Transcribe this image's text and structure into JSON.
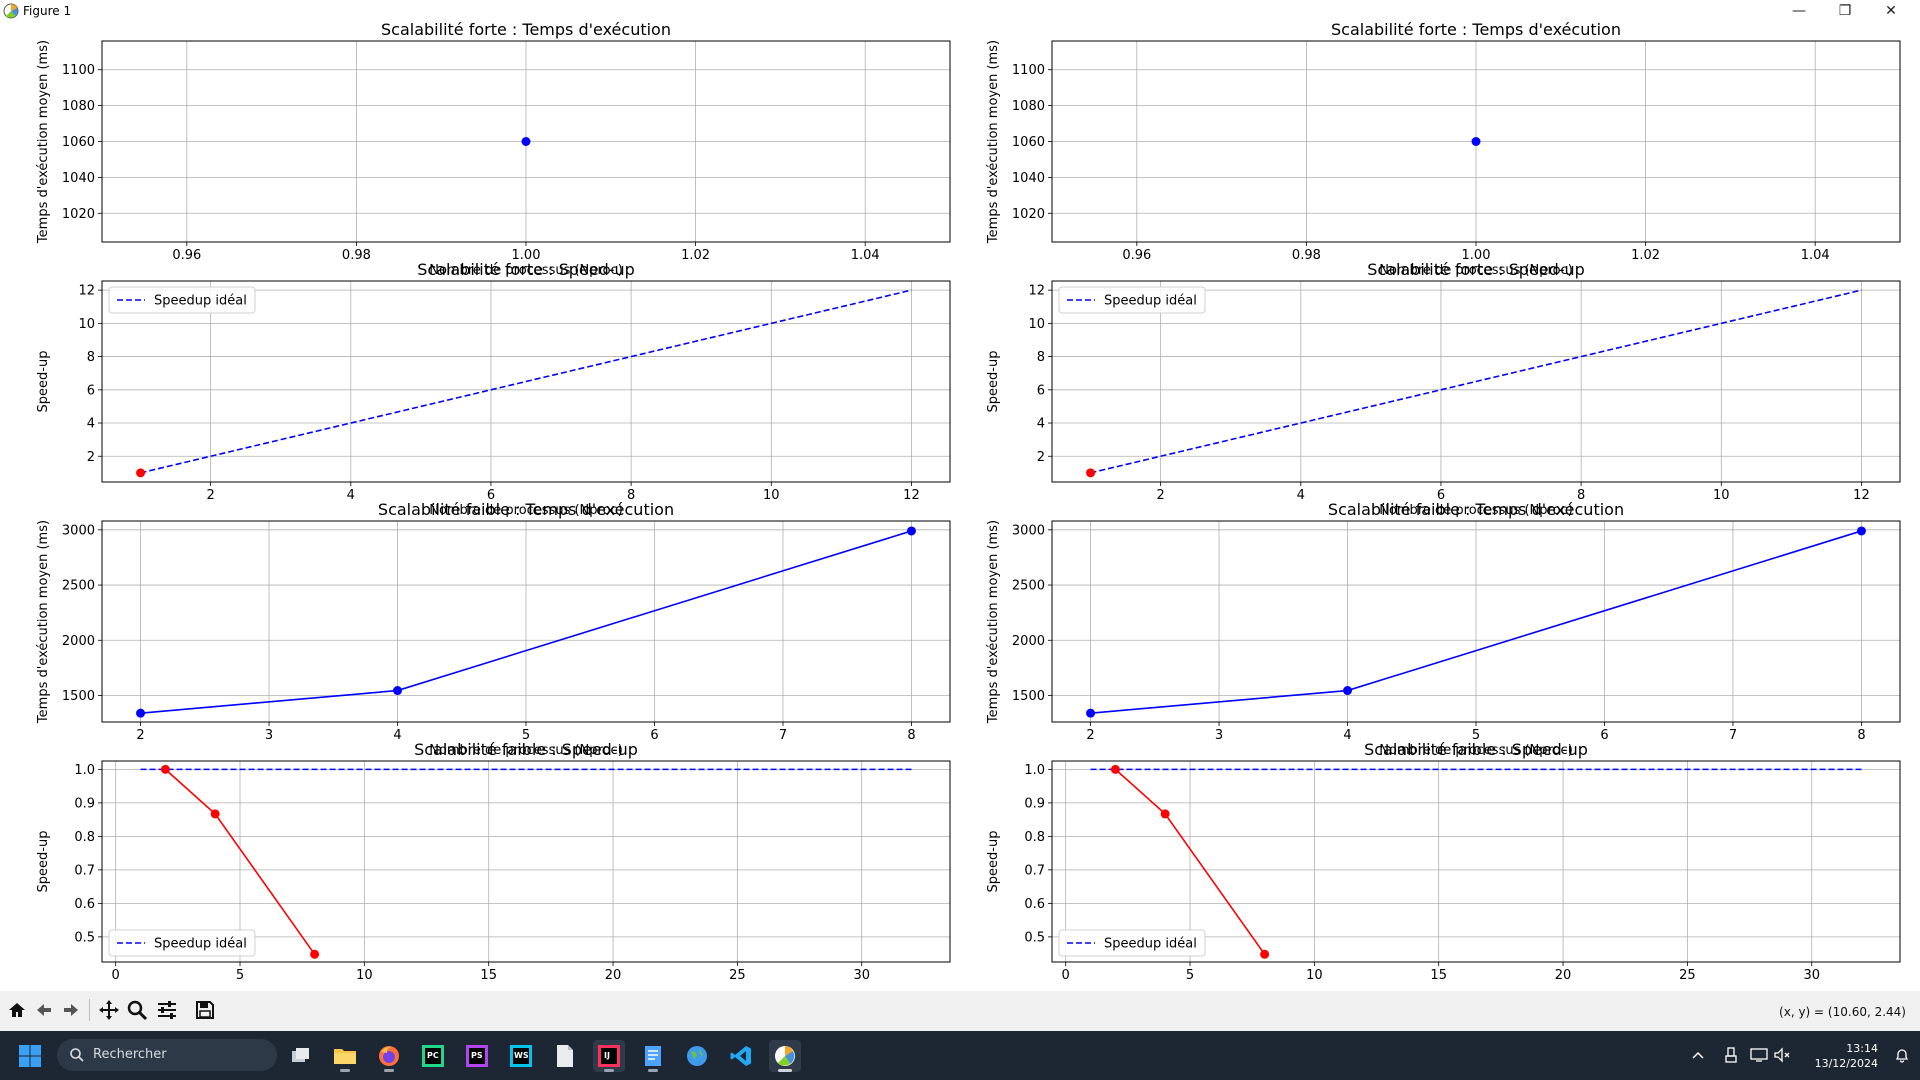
{
  "window": {
    "title": "Figure 1",
    "controls": {
      "minimize": "—",
      "maximize": "❐",
      "close": "✕"
    }
  },
  "toolbar": {
    "buttons": [
      "home-icon",
      "back-icon",
      "forward-icon",
      "pan-icon",
      "zoom-icon",
      "configure-subplots-icon",
      "save-icon"
    ],
    "coords": "(x, y) = (10.60, 2.44)"
  },
  "taskbar": {
    "search_placeholder": "Rechercher",
    "apps": [
      "task-view",
      "file-explorer",
      "firefox",
      "pycharm",
      "phpstorm",
      "webstorm",
      "notepad",
      "intellij",
      "notes",
      "globe",
      "vscode",
      "matplotlib"
    ],
    "time": "13:14",
    "date": "13/12/2024"
  },
  "chart_data": [
    {
      "type": "scatter",
      "title": "Scalabilité forte : Temps d'exécution",
      "xlabel": "Nombre de processus (Nproc)",
      "ylabel": "Temps d'exécution moyen (ms)",
      "xlim": [
        0.95,
        1.05
      ],
      "ylim": [
        1004,
        1116
      ],
      "xticks": [
        0.96,
        0.98,
        1.0,
        1.02,
        1.04
      ],
      "xticklabels": [
        "0.96",
        "0.98",
        "1.00",
        "1.02",
        "1.04"
      ],
      "yticks": [
        1020,
        1040,
        1060,
        1080,
        1100
      ],
      "yticklabels": [
        "1020",
        "1040",
        "1060",
        "1080",
        "1100"
      ],
      "grid": true,
      "legend": null,
      "series": [
        {
          "name": "",
          "style": "marker",
          "color": "#0000ff",
          "x": [
            1.0
          ],
          "y": [
            1060
          ]
        }
      ]
    },
    {
      "type": "line",
      "title": "Scalabilité forte : Speed-up",
      "xlabel": "Nombre de processus (Nproc)",
      "ylabel": "Speed-up",
      "xlim": [
        0.45,
        12.55
      ],
      "ylim": [
        0.45,
        12.55
      ],
      "xticks": [
        2,
        4,
        6,
        8,
        10,
        12
      ],
      "xticklabels": [
        "2",
        "4",
        "6",
        "8",
        "10",
        "12"
      ],
      "yticks": [
        2,
        4,
        6,
        8,
        10,
        12
      ],
      "yticklabels": [
        "2",
        "4",
        "6",
        "8",
        "10",
        "12"
      ],
      "grid": true,
      "legend": "upper left",
      "series": [
        {
          "name": "Speedup idéal",
          "style": "dashed",
          "color": "#0000ff",
          "x": [
            1,
            12
          ],
          "y": [
            1,
            12
          ]
        },
        {
          "name": "",
          "style": "marker",
          "color": "#ff0000",
          "x": [
            1
          ],
          "y": [
            1
          ]
        }
      ]
    },
    {
      "type": "line",
      "title": "Scalabilité faible : Temps d'exécution",
      "xlabel": "Nombre de processus (Nproc)",
      "ylabel": "Temps d'exécution moyen (ms)",
      "xlim": [
        1.7,
        8.3
      ],
      "ylim": [
        1260,
        3080
      ],
      "xticks": [
        2,
        3,
        4,
        5,
        6,
        7,
        8
      ],
      "xticklabels": [
        "2",
        "3",
        "4",
        "5",
        "6",
        "7",
        "8"
      ],
      "yticks": [
        1500,
        2000,
        2500,
        3000
      ],
      "yticklabels": [
        "1500",
        "2000",
        "2500",
        "3000"
      ],
      "grid": true,
      "legend": null,
      "series": [
        {
          "name": "",
          "style": "line-marker",
          "color": "#0000ff",
          "x": [
            2,
            4,
            8
          ],
          "y": [
            1340,
            1545,
            2990
          ]
        }
      ]
    },
    {
      "type": "line",
      "title": "Scalabilité faible : Speed-up",
      "xlabel": "",
      "ylabel": "Speed-up",
      "xlim": [
        -0.55,
        33.55
      ],
      "ylim": [
        0.425,
        1.025
      ],
      "xticks": [
        0,
        5,
        10,
        15,
        20,
        25,
        30
      ],
      "xticklabels": [
        "0",
        "5",
        "10",
        "15",
        "20",
        "25",
        "30"
      ],
      "yticks": [
        0.5,
        0.6,
        0.7,
        0.8,
        0.9,
        1.0
      ],
      "yticklabels": [
        "0.5",
        "0.6",
        "0.7",
        "0.8",
        "0.9",
        "1.0"
      ],
      "grid": true,
      "legend": "lower left",
      "series": [
        {
          "name": "Speedup idéal",
          "style": "dashed",
          "color": "#0000ff",
          "x": [
            1,
            32
          ],
          "y": [
            1.0,
            1.0
          ]
        },
        {
          "name": "",
          "style": "line-marker",
          "color": "#ff0000",
          "x": [
            2,
            4,
            8
          ],
          "y": [
            1.0,
            0.867,
            0.448
          ]
        }
      ]
    },
    {
      "type": "scatter",
      "title": "Scalabilité forte : Temps d'exécution",
      "xlabel": "Nombre de processus (Nproc)",
      "ylabel": "Temps d'exécution moyen (ms)",
      "xlim": [
        0.95,
        1.05
      ],
      "ylim": [
        1004,
        1116
      ],
      "xticks": [
        0.96,
        0.98,
        1.0,
        1.02,
        1.04
      ],
      "xticklabels": [
        "0.96",
        "0.98",
        "1.00",
        "1.02",
        "1.04"
      ],
      "yticks": [
        1020,
        1040,
        1060,
        1080,
        1100
      ],
      "yticklabels": [
        "1020",
        "1040",
        "1060",
        "1080",
        "1100"
      ],
      "grid": true,
      "legend": null,
      "series": [
        {
          "name": "",
          "style": "marker",
          "color": "#0000ff",
          "x": [
            1.0
          ],
          "y": [
            1060
          ]
        }
      ]
    },
    {
      "type": "line",
      "title": "Scalabilité forte : Speed-up",
      "xlabel": "Nombre de processus (Nproc)",
      "ylabel": "Speed-up",
      "xlim": [
        0.45,
        12.55
      ],
      "ylim": [
        0.45,
        12.55
      ],
      "xticks": [
        2,
        4,
        6,
        8,
        10,
        12
      ],
      "xticklabels": [
        "2",
        "4",
        "6",
        "8",
        "10",
        "12"
      ],
      "yticks": [
        2,
        4,
        6,
        8,
        10,
        12
      ],
      "yticklabels": [
        "2",
        "4",
        "6",
        "8",
        "10",
        "12"
      ],
      "grid": true,
      "legend": "upper left",
      "series": [
        {
          "name": "Speedup idéal",
          "style": "dashed",
          "color": "#0000ff",
          "x": [
            1,
            12
          ],
          "y": [
            1,
            12
          ]
        },
        {
          "name": "",
          "style": "marker",
          "color": "#ff0000",
          "x": [
            1
          ],
          "y": [
            1
          ]
        }
      ]
    },
    {
      "type": "line",
      "title": "Scalabilité faible : Temps d'exécution",
      "xlabel": "Nombre de processus (Nproc)",
      "ylabel": "Temps d'exécution moyen (ms)",
      "xlim": [
        1.7,
        8.3
      ],
      "ylim": [
        1260,
        3080
      ],
      "xticks": [
        2,
        3,
        4,
        5,
        6,
        7,
        8
      ],
      "xticklabels": [
        "2",
        "3",
        "4",
        "5",
        "6",
        "7",
        "8"
      ],
      "yticks": [
        1500,
        2000,
        2500,
        3000
      ],
      "yticklabels": [
        "1500",
        "2000",
        "2500",
        "3000"
      ],
      "grid": true,
      "legend": null,
      "series": [
        {
          "name": "",
          "style": "line-marker",
          "color": "#0000ff",
          "x": [
            2,
            4,
            8
          ],
          "y": [
            1340,
            1545,
            2990
          ]
        }
      ]
    },
    {
      "type": "line",
      "title": "Scalabilité faible : Speed-up",
      "xlabel": "",
      "ylabel": "Speed-up",
      "xlim": [
        -0.55,
        33.55
      ],
      "ylim": [
        0.425,
        1.025
      ],
      "xticks": [
        0,
        5,
        10,
        15,
        20,
        25,
        30
      ],
      "xticklabels": [
        "0",
        "5",
        "10",
        "15",
        "20",
        "25",
        "30"
      ],
      "yticks": [
        0.5,
        0.6,
        0.7,
        0.8,
        0.9,
        1.0
      ],
      "yticklabels": [
        "0.5",
        "0.6",
        "0.7",
        "0.8",
        "0.9",
        "1.0"
      ],
      "grid": true,
      "legend": "lower left",
      "series": [
        {
          "name": "Speedup idéal",
          "style": "dashed",
          "color": "#0000ff",
          "x": [
            1,
            32
          ],
          "y": [
            1.0,
            1.0
          ]
        },
        {
          "name": "",
          "style": "line-marker",
          "color": "#ff0000",
          "x": [
            2,
            4,
            8
          ],
          "y": [
            1.0,
            0.867,
            0.448
          ]
        }
      ]
    }
  ]
}
